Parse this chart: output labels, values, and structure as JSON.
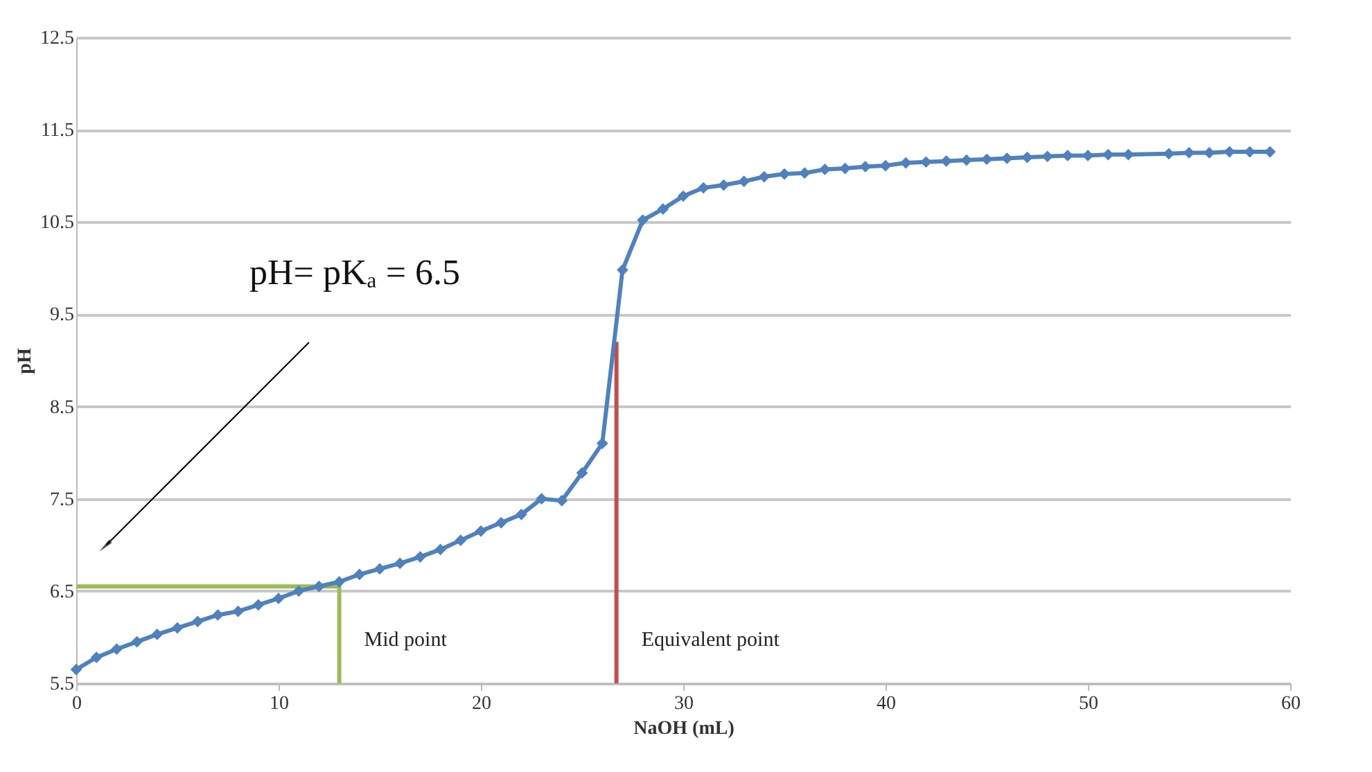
{
  "chart_data": {
    "type": "line",
    "xlabel": "NaOH (mL)",
    "ylabel": "pH",
    "xlim": [
      0,
      60
    ],
    "xticks": [
      0,
      10,
      20,
      30,
      40,
      50,
      60
    ],
    "ylim": [
      5.5,
      12.5
    ],
    "yticks": [
      5.5,
      6.5,
      7.5,
      8.5,
      9.5,
      10.5,
      11.5,
      12.5
    ],
    "grid": "y",
    "series": [
      {
        "marker": "diamond",
        "color": "#4f81bd",
        "x": [
          0,
          1,
          2,
          3,
          4,
          5,
          6,
          7,
          8,
          9,
          10,
          11,
          12,
          13,
          14,
          15,
          16,
          17,
          18,
          19,
          20,
          21,
          22,
          23,
          24,
          25,
          26,
          27,
          28,
          29,
          30,
          31,
          32,
          33,
          34,
          35,
          36,
          37,
          38,
          39,
          40,
          41,
          42,
          43,
          44,
          45,
          46,
          47,
          48,
          49,
          50,
          51,
          52,
          54,
          55,
          56,
          57,
          58,
          59
        ],
        "values": [
          5.65,
          5.78,
          5.87,
          5.95,
          6.03,
          6.1,
          6.17,
          6.24,
          6.28,
          6.35,
          6.42,
          6.5,
          6.55,
          6.6,
          6.68,
          6.74,
          6.8,
          6.87,
          6.95,
          7.05,
          7.15,
          7.24,
          7.33,
          7.5,
          7.48,
          7.78,
          8.1,
          9.98,
          10.52,
          10.64,
          10.78,
          10.87,
          10.9,
          10.94,
          10.99,
          11.02,
          11.03,
          11.07,
          11.08,
          11.1,
          11.11,
          11.14,
          11.15,
          11.16,
          11.17,
          11.18,
          11.19,
          11.2,
          11.21,
          11.22,
          11.22,
          11.23,
          11.23,
          11.24,
          11.25,
          11.25,
          11.26,
          11.26,
          11.26
        ]
      },
      {
        "marker": "none",
        "color": "#9bbb59",
        "x": [
          0,
          13,
          13
        ],
        "values": [
          6.55,
          6.55,
          5.5
        ]
      },
      {
        "marker": "none",
        "color": "#c0504d",
        "x": [
          26.7,
          26.7
        ],
        "values": [
          5.5,
          9.2
        ]
      }
    ],
    "annotations": [
      "pH= pKₐ = 6.5",
      "Mid point",
      "Equivalent point"
    ]
  }
}
